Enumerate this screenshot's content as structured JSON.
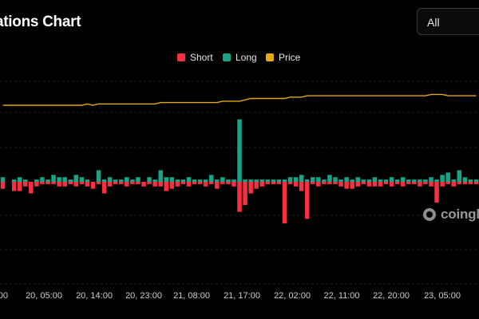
{
  "header": {
    "title": "ations Chart"
  },
  "filter": {
    "value": "All"
  },
  "legend": [
    {
      "label": "Short",
      "color": "#f6303f"
    },
    {
      "label": "Long",
      "color": "#17a58a"
    },
    {
      "label": "Price",
      "color": "#e3a70f"
    }
  ],
  "watermark": {
    "text": "coingl"
  },
  "chart_data": {
    "type": "bar",
    "x_ticks": [
      "00",
      "20, 05:00",
      "20, 14:00",
      "20, 23:00",
      "21, 08:00",
      "21, 17:00",
      "22, 02:00",
      "22, 11:00",
      "22, 20:00",
      "23, 05:00"
    ],
    "series": [
      {
        "name": "Long",
        "values": [
          2,
          0,
          1,
          2,
          1,
          0,
          1,
          2,
          1,
          3,
          2,
          2,
          1,
          3,
          2,
          1,
          0,
          5,
          1,
          2,
          1,
          1,
          2,
          1,
          2,
          0,
          2,
          1,
          5,
          2,
          2,
          1,
          1,
          2,
          1,
          1,
          1,
          3,
          1,
          2,
          1,
          1,
          27,
          1,
          1,
          1,
          1,
          1,
          1,
          1,
          1,
          2,
          2,
          3,
          1,
          2,
          2,
          1,
          3,
          2,
          1,
          2,
          1,
          2,
          1,
          1,
          2,
          1,
          1,
          2,
          1,
          2,
          1,
          1,
          1,
          1,
          2,
          1,
          3,
          4,
          1,
          5,
          2,
          1,
          1
        ]
      },
      {
        "name": "Short",
        "values": [
          3,
          0,
          4,
          4,
          2,
          5,
          2,
          1,
          1,
          1,
          2,
          2,
          1,
          2,
          1,
          2,
          3,
          1,
          5,
          2,
          1,
          1,
          2,
          1,
          1,
          2,
          1,
          2,
          2,
          4,
          3,
          2,
          1,
          2,
          1,
          1,
          2,
          1,
          3,
          1,
          1,
          2,
          13,
          10,
          5,
          3,
          2,
          1,
          1,
          1,
          18,
          1,
          2,
          4,
          16,
          1,
          2,
          1,
          1,
          1,
          2,
          3,
          3,
          2,
          1,
          2,
          2,
          2,
          1,
          2,
          1,
          2,
          1,
          1,
          2,
          1,
          2,
          9,
          2,
          1,
          2,
          1,
          1,
          1,
          1
        ]
      },
      {
        "name": "Price",
        "values": [
          30,
          30,
          30,
          30,
          30,
          30,
          30,
          30,
          30,
          30,
          30,
          30,
          30,
          30,
          30,
          31,
          30,
          31,
          31,
          31,
          31,
          31,
          31,
          31,
          31,
          31,
          31,
          31,
          32,
          32,
          32,
          32,
          32,
          32,
          32,
          32,
          32,
          32,
          32,
          33,
          33,
          33,
          33,
          34,
          35,
          35,
          35,
          35,
          35,
          35,
          35,
          36,
          36,
          36,
          37,
          37,
          37,
          37,
          37,
          37,
          37,
          37,
          37,
          37,
          37,
          37,
          37,
          37,
          37,
          37,
          37,
          37,
          37,
          37,
          37,
          37,
          38,
          38,
          38,
          37,
          37,
          37,
          37,
          37,
          37
        ]
      }
    ]
  }
}
